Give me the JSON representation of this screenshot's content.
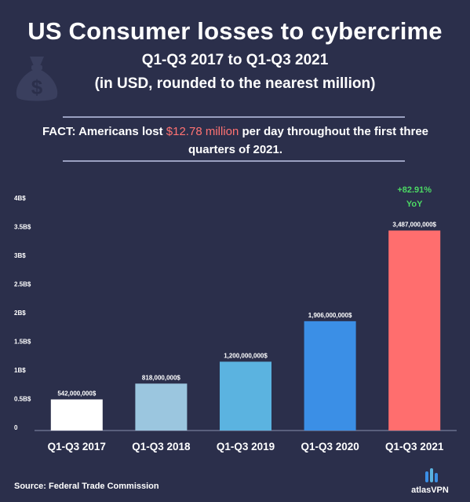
{
  "header": {
    "title": "US Consumer losses to cybercrime",
    "subtitle_line1": "Q1-Q3 2017 to Q1-Q3 2021",
    "subtitle_line2": "(in USD, rounded to the nearest million)"
  },
  "fact": {
    "label": "FACT:",
    "text_before": " Americans lost ",
    "highlight": "$12.78 million",
    "text_after": " per day throughout the first three quarters of 2021."
  },
  "chart_data": {
    "type": "bar",
    "categories": [
      "Q1-Q3 2017",
      "Q1-Q3 2018",
      "Q1-Q3 2019",
      "Q1-Q3 2020",
      "Q1-Q3 2021"
    ],
    "values": [
      542000000,
      818000000,
      1200000000,
      1906000000,
      3487000000
    ],
    "value_labels": [
      "542,000,000$",
      "818,000,000$",
      "1,200,000,000$",
      "1,906,000,000$",
      "3,487,000,000$"
    ],
    "ylim": [
      0,
      4000000000
    ],
    "yticks": [
      0,
      500000000,
      1000000000,
      1500000000,
      2000000000,
      2500000000,
      3000000000,
      3500000000,
      4000000000
    ],
    "ytick_labels": [
      "0",
      "0.5B$",
      "1B$",
      "1.5B$",
      "2B$",
      "2.5B$",
      "3B$",
      "3.5B$",
      "4B$"
    ],
    "bar_colors": [
      "#ffffff",
      "#9bc6df",
      "#5bb3e0",
      "#3b8fe6",
      "#ff6e6e"
    ],
    "annotation": {
      "line1": "+82.91%",
      "line2": "YoY",
      "color": "#4cd964"
    },
    "grid": false
  },
  "footer": {
    "source": "Source: Federal Trade Commission",
    "brand": "atlasVPN"
  },
  "colors": {
    "background": "#2b2f4b",
    "highlight": "#ff7272",
    "axis": "#8a8fae"
  }
}
